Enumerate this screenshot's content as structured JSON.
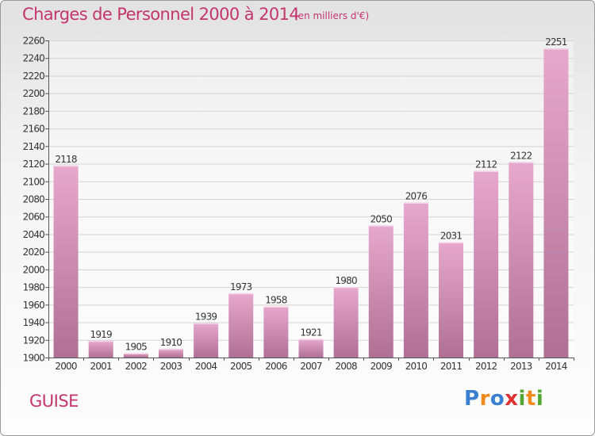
{
  "header": {
    "title": "Charges de Personnel 2000 à 2014",
    "subtitle": "(en milliers d'€)"
  },
  "footer": {
    "commune": "GUISE",
    "logo_text": "Proxiti",
    "logo_letters": [
      {
        "char": "P",
        "color": "#3a7fd0"
      },
      {
        "char": "r",
        "color": "#f08a1c"
      },
      {
        "char": "o",
        "color": "#3a7fd0"
      },
      {
        "char": "x",
        "color": "#e03030"
      },
      {
        "char": "i",
        "color": "#52a832"
      },
      {
        "char": "t",
        "color": "#f08a1c"
      },
      {
        "char": "i",
        "color": "#52a832"
      }
    ]
  },
  "colors": {
    "accent": "#c4366a",
    "bar_top": "#e6a8cc",
    "bar_bottom": "#b07095"
  },
  "chart_data": {
    "type": "bar",
    "title": "Charges de Personnel 2000 à 2014",
    "subtitle": "(en milliers d'€)",
    "categories": [
      "2000",
      "2001",
      "2002",
      "2003",
      "2004",
      "2005",
      "2006",
      "2007",
      "2008",
      "2009",
      "2010",
      "2011",
      "2012",
      "2013",
      "2014"
    ],
    "values": [
      2118,
      1919,
      1905,
      1910,
      1939,
      1973,
      1958,
      1921,
      1980,
      2050,
      2076,
      2031,
      2112,
      2122,
      2251
    ],
    "ylim": [
      1900,
      2260
    ],
    "ytick_step": 20,
    "grid": true,
    "xlabel": "",
    "ylabel": ""
  }
}
